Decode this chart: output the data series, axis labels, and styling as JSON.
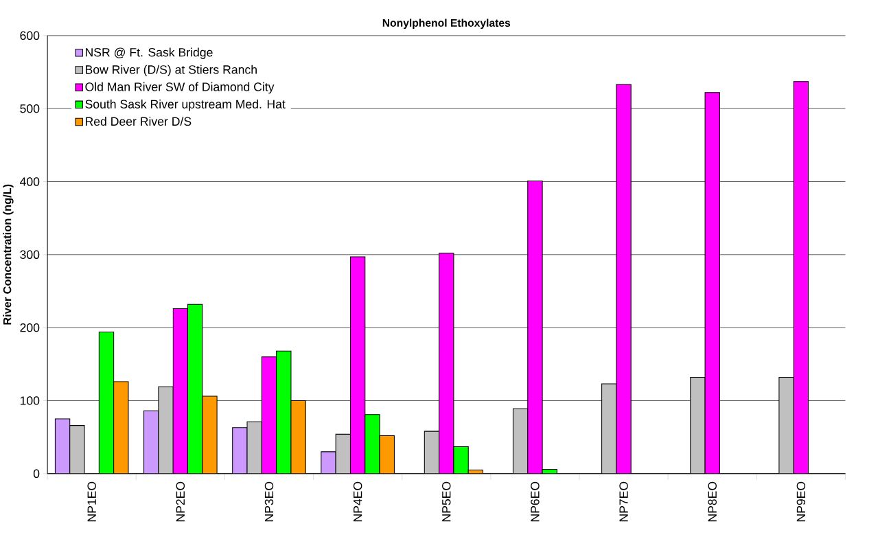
{
  "chart_data": {
    "type": "bar",
    "title": "Nonylphenol Ethoxylates",
    "ylabel": "River Concentration (ng/L)",
    "categories": [
      "NP1EO",
      "NP2EO",
      "NP3EO",
      "NP4EO",
      "NP5EO",
      "NP6EO",
      "NP7EO",
      "NP8EO",
      "NP9EO"
    ],
    "series": [
      {
        "name": "NSR @ Ft. Sask Bridge",
        "color": "#cc99ff",
        "values": [
          75,
          86,
          63,
          30,
          null,
          null,
          null,
          null,
          null
        ]
      },
      {
        "name": "Bow River (D/S) at Stiers Ranch",
        "color": "#c0c0c0",
        "values": [
          66,
          119,
          71,
          54,
          58,
          89,
          123,
          132,
          132
        ]
      },
      {
        "name": "Old Man River SW of Diamond City",
        "color": "#ff00ff",
        "values": [
          null,
          226,
          160,
          297,
          302,
          401,
          533,
          522,
          537
        ]
      },
      {
        "name": "South Sask River upstream Med. Hat",
        "color": "#00ff00",
        "values": [
          194,
          232,
          168,
          81,
          37,
          6,
          null,
          null,
          null
        ]
      },
      {
        "name": "Red Deer River D/S",
        "color": "#ff9900",
        "values": [
          126,
          106,
          100,
          52,
          5,
          null,
          null,
          null,
          null
        ]
      }
    ],
    "ylim": [
      0,
      600
    ],
    "yticks": [
      0,
      100,
      200,
      300,
      400,
      500,
      600
    ],
    "grid": "y",
    "legend": "top left"
  }
}
